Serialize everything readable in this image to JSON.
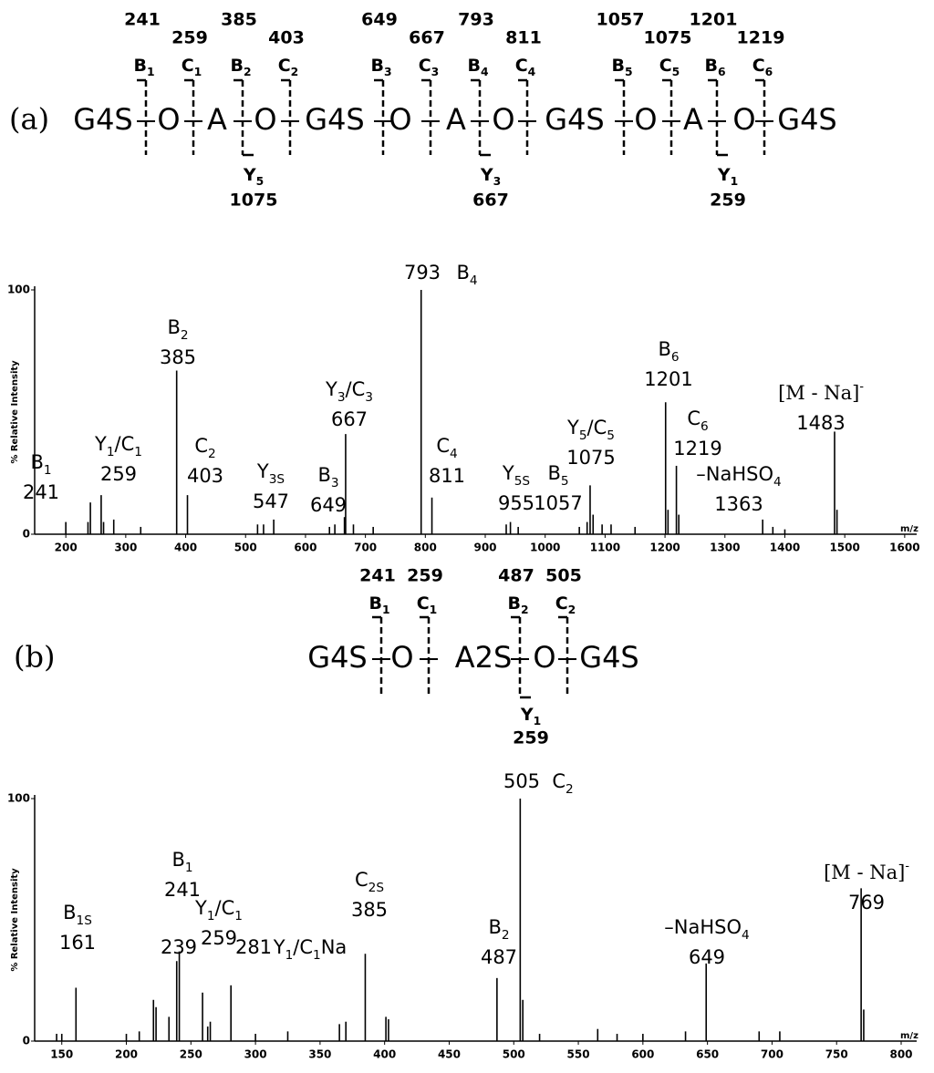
{
  "chart_data": [
    {
      "type": "bar",
      "ylabel": "% Relative Intensity",
      "xlabel": "m/z",
      "color": "#000000",
      "xlim": [
        148,
        1620
      ],
      "ylim": [
        0,
        100
      ],
      "xticks": [
        200,
        300,
        400,
        500,
        600,
        700,
        800,
        900,
        1000,
        1100,
        1200,
        1300,
        1400,
        1500,
        1600
      ],
      "yticks": [
        0,
        100
      ],
      "peaks": [
        {
          "mz": 241,
          "intensity": 13,
          "ion": [
            "B",
            "1"
          ]
        },
        {
          "mz": 259,
          "intensity": 16,
          "ion": [
            "Y",
            "1",
            "/C",
            "1"
          ]
        },
        {
          "mz": 385,
          "intensity": 67,
          "ion": [
            "B",
            "2"
          ]
        },
        {
          "mz": 403,
          "intensity": 16,
          "ion": [
            "C",
            "2"
          ]
        },
        {
          "mz": 547,
          "intensity": 6,
          "ion": [
            "Y",
            "3S"
          ]
        },
        {
          "mz": 649,
          "intensity": 4,
          "ion": [
            "B",
            "3"
          ]
        },
        {
          "mz": 667,
          "intensity": 41,
          "ion": [
            "Y",
            "3",
            "/C",
            "3"
          ]
        },
        {
          "mz": 793,
          "intensity": 100,
          "ion": [
            "B",
            "4"
          ]
        },
        {
          "mz": 811,
          "intensity": 15,
          "ion": [
            "C",
            "4"
          ]
        },
        {
          "mz": 955,
          "intensity": 3,
          "ion": [
            "Y",
            "5S"
          ]
        },
        {
          "mz": 1057,
          "intensity": 3,
          "ion": [
            "B",
            "5"
          ]
        },
        {
          "mz": 1075,
          "intensity": 20,
          "ion": [
            "Y",
            "5",
            "/C",
            "5"
          ]
        },
        {
          "mz": 1201,
          "intensity": 54,
          "ion": [
            "B",
            "6"
          ]
        },
        {
          "mz": 1219,
          "intensity": 28,
          "ion": [
            "C",
            "6"
          ]
        },
        {
          "mz": 1363,
          "intensity": 6,
          "ion": [
            "–NaHSO",
            "4"
          ]
        },
        {
          "mz": 1483,
          "intensity": 42,
          "ion": [
            "[M - Na]"
          ],
          "sup": "-"
        }
      ],
      "minor_peaks": {
        "x": [
          200,
          237,
          263,
          280,
          325,
          520,
          530,
          640,
          665,
          680,
          713,
          935,
          942,
          1070,
          1080,
          1095,
          1110,
          1150,
          1205,
          1223,
          1380,
          1400,
          1487
        ],
        "values": [
          5,
          5,
          5,
          6,
          3,
          4,
          4,
          3,
          7,
          4,
          3,
          4,
          5,
          5,
          8,
          4,
          4,
          3,
          10,
          8,
          3,
          2,
          10
        ]
      }
    },
    {
      "type": "bar",
      "ylabel": "% Relative Intensity",
      "xlabel": "m/z",
      "color": "#000000",
      "xlim": [
        129,
        812
      ],
      "ylim": [
        0,
        100
      ],
      "xticks": [
        150,
        200,
        250,
        300,
        350,
        400,
        450,
        500,
        550,
        600,
        650,
        700,
        750,
        800
      ],
      "yticks": [
        0,
        100
      ],
      "peaks": [
        {
          "mz": 161,
          "intensity": 22,
          "ion": [
            "B",
            "1S"
          ]
        },
        {
          "mz": 239,
          "intensity": 33,
          "ion": null
        },
        {
          "mz": 241,
          "intensity": 37,
          "ion": [
            "B",
            "1"
          ]
        },
        {
          "mz": 259,
          "intensity": 20,
          "ion": [
            "Y",
            "1",
            "/C",
            "1"
          ]
        },
        {
          "mz": 281,
          "intensity": 23,
          "ion": [
            "Y",
            "1",
            "/C",
            "1",
            "Na"
          ]
        },
        {
          "mz": 385,
          "intensity": 36,
          "ion": [
            "C",
            "2S"
          ]
        },
        {
          "mz": 487,
          "intensity": 26,
          "ion": [
            "B",
            "2"
          ]
        },
        {
          "mz": 505,
          "intensity": 100,
          "ion": [
            "C",
            "2"
          ]
        },
        {
          "mz": 649,
          "intensity": 32,
          "ion": [
            "–NaHSO",
            "4"
          ]
        },
        {
          "mz": 769,
          "intensity": 63,
          "ion": [
            "[M - Na]"
          ],
          "sup": "-"
        }
      ],
      "minor_peaks": {
        "x": [
          146,
          150,
          200,
          210,
          221,
          223,
          233,
          263,
          265,
          300,
          325,
          365,
          370,
          401,
          403,
          507,
          520,
          565,
          580,
          600,
          633,
          690,
          706,
          771
        ],
        "values": [
          3,
          3,
          3,
          4,
          17,
          14,
          10,
          6,
          8,
          3,
          4,
          7,
          8,
          10,
          9,
          17,
          3,
          5,
          3,
          3,
          4,
          4,
          4,
          13
        ]
      }
    }
  ],
  "schemes": [
    {
      "label": "(a)",
      "residues": [
        "G4S",
        "O",
        "A",
        "O",
        "G4S",
        "O",
        "A",
        "O",
        "G4S",
        "O",
        "A",
        "O",
        "G4S"
      ],
      "cuts": [
        {
          "ion": [
            "B",
            "1"
          ],
          "mz": 241
        },
        {
          "ion": [
            "C",
            "1"
          ],
          "mz": 259
        },
        {
          "ion": [
            "B",
            "2"
          ],
          "mz": 385,
          "y": {
            "ion": [
              "Y",
              "5"
            ],
            "mz": 1075
          }
        },
        {
          "ion": [
            "C",
            "2"
          ],
          "mz": 403
        },
        {
          "ion": [
            "B",
            "3"
          ],
          "mz": 649
        },
        {
          "ion": [
            "C",
            "3"
          ],
          "mz": 667
        },
        {
          "ion": [
            "B",
            "4"
          ],
          "mz": 793,
          "y": {
            "ion": [
              "Y",
              "3"
            ],
            "mz": 667
          }
        },
        {
          "ion": [
            "C",
            "4"
          ],
          "mz": 811
        },
        {
          "ion": [
            "B",
            "5"
          ],
          "mz": 1057
        },
        {
          "ion": [
            "C",
            "5"
          ],
          "mz": 1075
        },
        {
          "ion": [
            "B",
            "6"
          ],
          "mz": 1201,
          "y": {
            "ion": [
              "Y",
              "1"
            ],
            "mz": 259
          }
        },
        {
          "ion": [
            "C",
            "6"
          ],
          "mz": 1219
        }
      ]
    },
    {
      "label": "(b)",
      "residues": [
        "G4S",
        "O",
        "A2S",
        "O",
        "G4S"
      ],
      "cuts": [
        {
          "ion": [
            "B",
            "1"
          ],
          "mz": 241
        },
        {
          "ion": [
            "C",
            "1"
          ],
          "mz": 259
        },
        {
          "ion": [
            "B",
            "2"
          ],
          "mz": 487,
          "y": {
            "ion": [
              "Y",
              "1"
            ],
            "mz": 259
          }
        },
        {
          "ion": [
            "C",
            "2"
          ],
          "mz": 505
        }
      ]
    }
  ]
}
